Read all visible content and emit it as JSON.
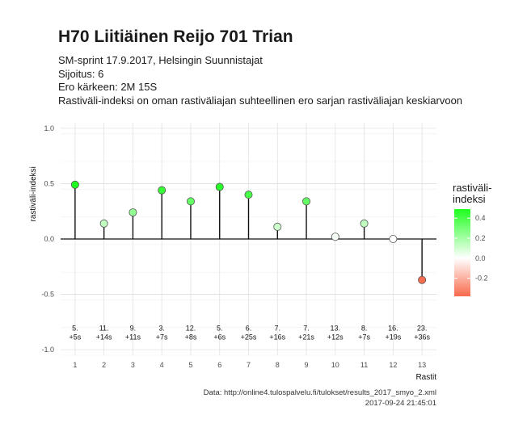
{
  "title": "H70 Liitiäinen Reijo 701 Trian",
  "subtitle_lines": [
    "SM-sprint 17.9.2017, Helsingin Suunnistajat",
    "Sijoitus: 6",
    "Ero kärkeen: 2M 15S",
    "Rastiväli-indeksi on oman rastiväliajan suhteellinen ero sarjan rastiväliajan keskiarvoon"
  ],
  "caption": {
    "source": "Data: http://online4.tulospalvelu.fi/tulokset/results_2017_smyo_2.xml",
    "timestamp": "2017-09-24 21:45:01"
  },
  "legend": {
    "title_lines": [
      "rastiväli-",
      "indeksi"
    ],
    "ticks": [
      "0.4",
      "0.2",
      "0.0",
      "-0.2"
    ],
    "tick_values": [
      0.4,
      0.2,
      0.0,
      -0.2
    ],
    "range": [
      -0.38,
      0.49
    ],
    "colors": {
      "low": "#f8694a",
      "mid": "#ffffff",
      "high": "#1fff1f"
    }
  },
  "chart_data": {
    "type": "lollipop",
    "xlabel": "Rastit",
    "ylabel": "rastiväli-indeksi",
    "xlim": [
      0.5,
      13.5
    ],
    "ylim": [
      -1.05,
      1.05
    ],
    "xticks": [
      1,
      2,
      3,
      4,
      5,
      6,
      7,
      8,
      9,
      10,
      11,
      12,
      13
    ],
    "yticks": [
      -1.0,
      -0.5,
      0.0,
      0.5,
      1.0
    ],
    "ytick_labels": [
      "-1.0",
      "-0.5",
      "0.0",
      "0.5",
      "1.0"
    ],
    "grid": true,
    "points": [
      {
        "x": 1,
        "y": 0.49,
        "rank": "5.",
        "diff": "+5s"
      },
      {
        "x": 2,
        "y": 0.14,
        "rank": "11.",
        "diff": "+14s"
      },
      {
        "x": 3,
        "y": 0.24,
        "rank": "9.",
        "diff": "+11s"
      },
      {
        "x": 4,
        "y": 0.44,
        "rank": "3.",
        "diff": "+7s"
      },
      {
        "x": 5,
        "y": 0.34,
        "rank": "12.",
        "diff": "+8s"
      },
      {
        "x": 6,
        "y": 0.47,
        "rank": "5.",
        "diff": "+6s"
      },
      {
        "x": 7,
        "y": 0.4,
        "rank": "6.",
        "diff": "+25s"
      },
      {
        "x": 8,
        "y": 0.11,
        "rank": "7.",
        "diff": "+16s"
      },
      {
        "x": 9,
        "y": 0.34,
        "rank": "7.",
        "diff": "+21s"
      },
      {
        "x": 10,
        "y": 0.02,
        "rank": "13.",
        "diff": "+12s"
      },
      {
        "x": 11,
        "y": 0.14,
        "rank": "8.",
        "diff": "+7s"
      },
      {
        "x": 12,
        "y": 0.0,
        "rank": "16.",
        "diff": "+19s"
      },
      {
        "x": 13,
        "y": -0.37,
        "rank": "23.",
        "diff": "+36s"
      }
    ],
    "label_y": -0.9
  }
}
